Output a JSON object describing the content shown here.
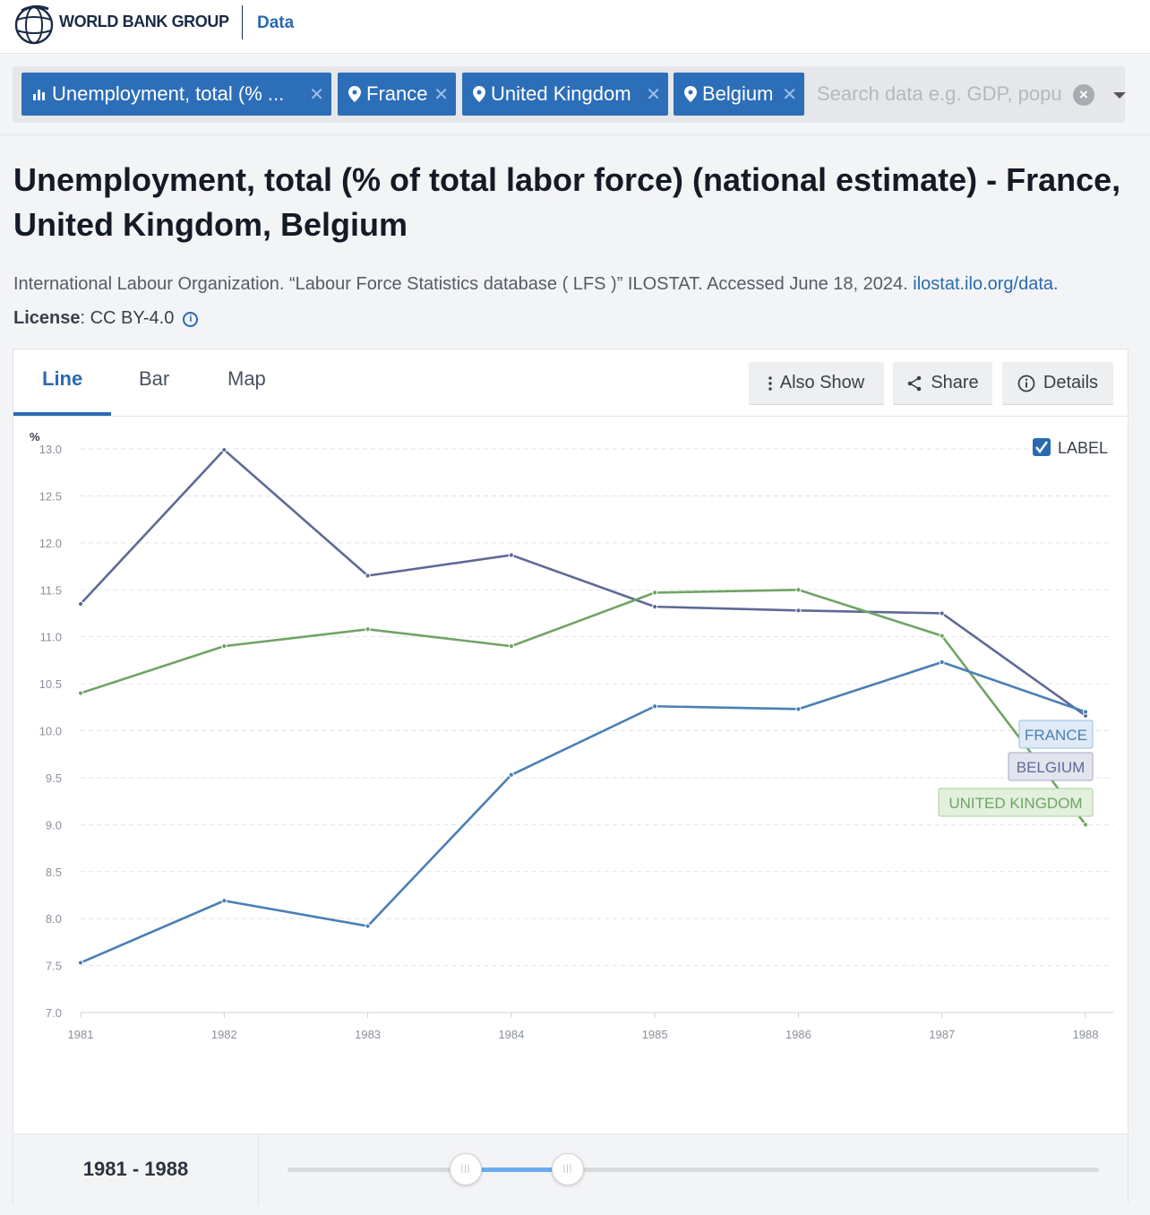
{
  "header": {
    "brand": "WORLD BANK GROUP",
    "section": "Data"
  },
  "search": {
    "chips": [
      {
        "icon": "bar-chart-icon",
        "label": "Unemployment, total (% ..."
      },
      {
        "icon": "location-pin-icon",
        "label": "France"
      },
      {
        "icon": "location-pin-icon",
        "label": "United Kingdom"
      },
      {
        "icon": "location-pin-icon",
        "label": "Belgium"
      }
    ],
    "placeholder": "Search data e.g. GDP, population"
  },
  "page": {
    "title": "Unemployment, total (% of total labor force) (national estimate) - France, United Kingdom, Belgium",
    "source_text": "International Labour Organization. “Labour Force Statistics database ( LFS )” ILOSTAT. Accessed June 18, 2024.",
    "source_link": "ilostat.ilo.org/data.",
    "license_label": "License",
    "license_value": ": CC BY-4.0"
  },
  "tabs": [
    "Line",
    "Bar",
    "Map"
  ],
  "toolbar": {
    "also_show": "Also Show",
    "share": "Share",
    "details": "Details"
  },
  "label_toggle": {
    "text": "LABEL",
    "checked": true
  },
  "range": {
    "label": "1981 - 1988",
    "start_fraction": 0.21,
    "end_fraction": 0.34
  },
  "colors": {
    "france": "#4a7fb5",
    "belgium": "#5f6a96",
    "uk": "#6fa564",
    "accent": "#2a6ab0"
  },
  "chart_data": {
    "type": "line",
    "ylabel": "%",
    "ylim": [
      7.0,
      13.0
    ],
    "yticks": [
      "13.0",
      "12.5",
      "12.0",
      "11.5",
      "11.0",
      "10.5",
      "10.0",
      "9.5",
      "9.0",
      "8.5",
      "8.0",
      "7.5",
      "7.0"
    ],
    "x": [
      "1981",
      "1982",
      "1983",
      "1984",
      "1985",
      "1986",
      "1987",
      "1988"
    ],
    "series": [
      {
        "name": "BELGIUM",
        "values": [
          11.35,
          12.99,
          11.65,
          11.87,
          11.32,
          11.28,
          11.25,
          10.16
        ]
      },
      {
        "name": "UNITED KINGDOM",
        "values": [
          10.4,
          10.9,
          11.08,
          10.9,
          11.47,
          11.5,
          11.01,
          9.0
        ]
      },
      {
        "name": "FRANCE",
        "values": [
          7.53,
          8.19,
          7.92,
          9.53,
          10.26,
          10.23,
          10.73,
          10.2
        ]
      }
    ],
    "grid": true,
    "legend": "end-labels"
  }
}
